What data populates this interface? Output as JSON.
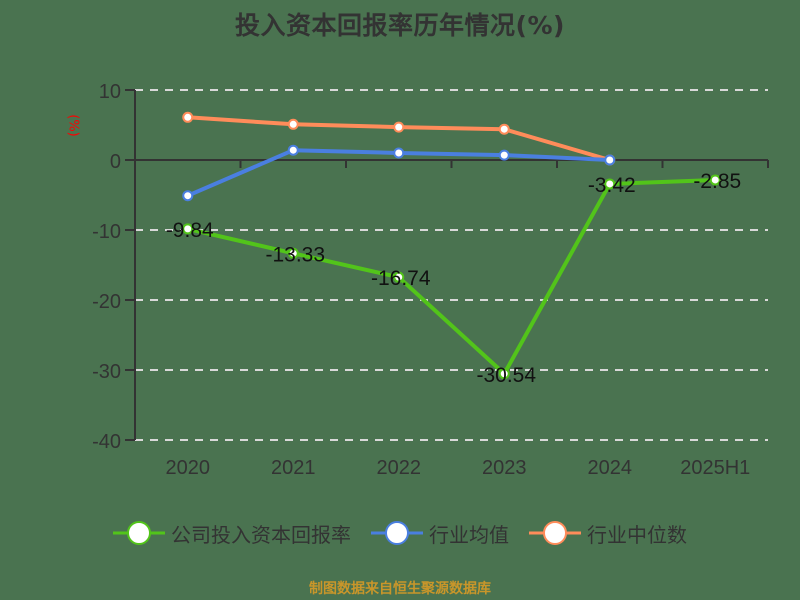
{
  "title": "投入资本回报率历年情况(%)",
  "y_unit": "(%)",
  "source": "制图数据来自恒生聚源数据库",
  "colors": {
    "company": "#52c41a",
    "industry_avg": "#4a7fe0",
    "industry_median": "#ff8c5a",
    "axis": "#333333",
    "grid": "#d9d9d9",
    "background": "#4a7350"
  },
  "legend": [
    {
      "label": "公司投入资本回报率",
      "color": "#52c41a"
    },
    {
      "label": "行业均值",
      "color": "#4a7fe0"
    },
    {
      "label": "行业中位数",
      "color": "#ff8c5a"
    }
  ],
  "chart_data": {
    "type": "line",
    "title": "投入资本回报率历年情况(%)",
    "xlabel": "",
    "ylabel": "(%)",
    "categories": [
      "2020",
      "2021",
      "2022",
      "2023",
      "2024",
      "2025H1"
    ],
    "ylim": [
      -40,
      10
    ],
    "yticks": [
      10,
      0,
      -10,
      -20,
      -30,
      -40
    ],
    "grid": "horizontal dashed",
    "legend_position": "bottom",
    "series": [
      {
        "name": "公司投入资本回报率",
        "values": [
          -9.84,
          -13.33,
          -16.74,
          -30.54,
          -3.42,
          -2.85
        ],
        "labels": [
          "-9.84",
          "-13.33",
          "-16.74",
          "-30.54",
          "-3.42",
          "-2.85"
        ]
      },
      {
        "name": "行业均值",
        "values": [
          -5.1,
          1.4,
          1.0,
          0.7,
          0.0,
          null
        ]
      },
      {
        "name": "行业中位数",
        "values": [
          6.1,
          5.1,
          4.7,
          4.4,
          0.0,
          null
        ]
      }
    ]
  }
}
